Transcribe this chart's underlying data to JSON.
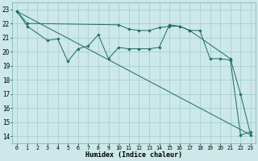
{
  "xlabel": "Humidex (Indice chaleur)",
  "bg_color": "#cce8e8",
  "line_color": "#1e6b60",
  "grid_color": "#aacfcf",
  "x_ticks": [
    0,
    1,
    2,
    3,
    4,
    5,
    6,
    7,
    8,
    9,
    10,
    11,
    12,
    13,
    14,
    15,
    16,
    17,
    18,
    19,
    20,
    21,
    22,
    23
  ],
  "y_ticks": [
    14,
    15,
    16,
    17,
    18,
    19,
    20,
    21,
    22,
    23
  ],
  "xlim": [
    -0.5,
    23.5
  ],
  "ylim": [
    13.5,
    23.5
  ],
  "line1_x": [
    0,
    1,
    10,
    11,
    12,
    13,
    14,
    15,
    16,
    17,
    21,
    22,
    23
  ],
  "line1_y": [
    22.85,
    22.0,
    21.9,
    21.6,
    21.5,
    21.5,
    21.7,
    21.8,
    21.8,
    21.5,
    19.5,
    17.0,
    14.1
  ],
  "line2_x": [
    0,
    23
  ],
  "line2_y": [
    22.85,
    14.1
  ],
  "line3_x": [
    0,
    1,
    3,
    4,
    5,
    6,
    7,
    8,
    9,
    10,
    11,
    12,
    13,
    14,
    15,
    16,
    17,
    18,
    19,
    20,
    21,
    22,
    23
  ],
  "line3_y": [
    22.85,
    21.8,
    20.8,
    20.9,
    19.3,
    20.2,
    20.4,
    21.2,
    19.5,
    20.3,
    20.2,
    20.2,
    20.2,
    20.3,
    21.9,
    21.8,
    21.5,
    21.5,
    19.5,
    19.5,
    19.4,
    14.1,
    14.3
  ]
}
